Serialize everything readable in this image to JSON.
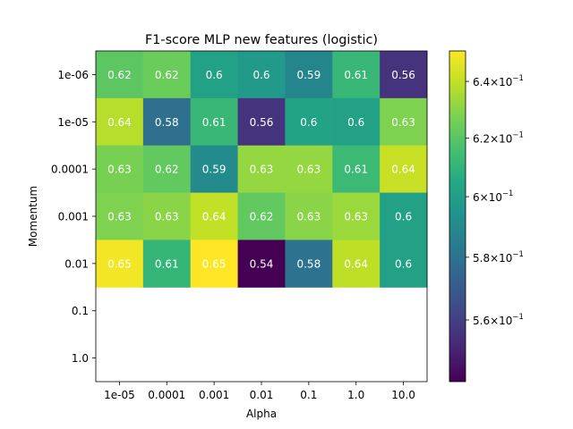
{
  "chart_data": {
    "type": "heatmap",
    "title": "F1-score MLP new features (logistic)",
    "xlabel": "Alpha",
    "ylabel": "Momentum",
    "x_categories": [
      "1e-05",
      "0.0001",
      "0.001",
      "0.01",
      "0.1",
      "1.0",
      "10.0"
    ],
    "y_categories": [
      "1e-06",
      "1e-05",
      "0.0001",
      "0.001",
      "0.01",
      "0.1",
      "1.0"
    ],
    "values": [
      [
        0.62,
        0.62,
        0.6,
        0.6,
        0.59,
        0.61,
        0.56
      ],
      [
        0.64,
        0.58,
        0.61,
        0.56,
        0.6,
        0.6,
        0.63
      ],
      [
        0.63,
        0.62,
        0.59,
        0.63,
        0.63,
        0.61,
        0.64
      ],
      [
        0.63,
        0.63,
        0.64,
        0.62,
        0.63,
        0.63,
        0.6
      ],
      [
        0.65,
        0.61,
        0.65,
        0.54,
        0.58,
        0.64,
        0.6
      ],
      [
        null,
        null,
        null,
        null,
        null,
        null,
        null
      ],
      [
        null,
        null,
        null,
        null,
        null,
        null,
        null
      ]
    ],
    "color_values": [
      [
        0.621,
        0.624,
        0.601,
        0.598,
        0.588,
        0.612,
        0.556
      ],
      [
        0.638,
        0.579,
        0.612,
        0.556,
        0.602,
        0.601,
        0.628
      ],
      [
        0.627,
        0.622,
        0.591,
        0.632,
        0.632,
        0.613,
        0.641
      ],
      [
        0.628,
        0.63,
        0.64,
        0.622,
        0.63,
        0.633,
        0.601
      ],
      [
        0.649,
        0.611,
        0.651,
        0.541,
        0.58,
        0.639,
        0.601
      ],
      [
        null,
        null,
        null,
        null,
        null,
        null,
        null
      ],
      [
        null,
        null,
        null,
        null,
        null,
        null,
        null
      ]
    ],
    "colormap": "viridis",
    "color_scale": "log",
    "color_range": [
      0.541,
      0.651
    ],
    "colorbar_ticks": [
      {
        "value": 0.56,
        "mantissa": "5.6",
        "exponent": "−1"
      },
      {
        "value": 0.58,
        "mantissa": "5.8",
        "exponent": "−1"
      },
      {
        "value": 0.6,
        "mantissa": "6",
        "exponent": "−1"
      },
      {
        "value": 0.62,
        "mantissa": "6.2",
        "exponent": "−1"
      },
      {
        "value": 0.64,
        "mantissa": "6.4",
        "exponent": "−1"
      }
    ],
    "tick_base": "10"
  }
}
